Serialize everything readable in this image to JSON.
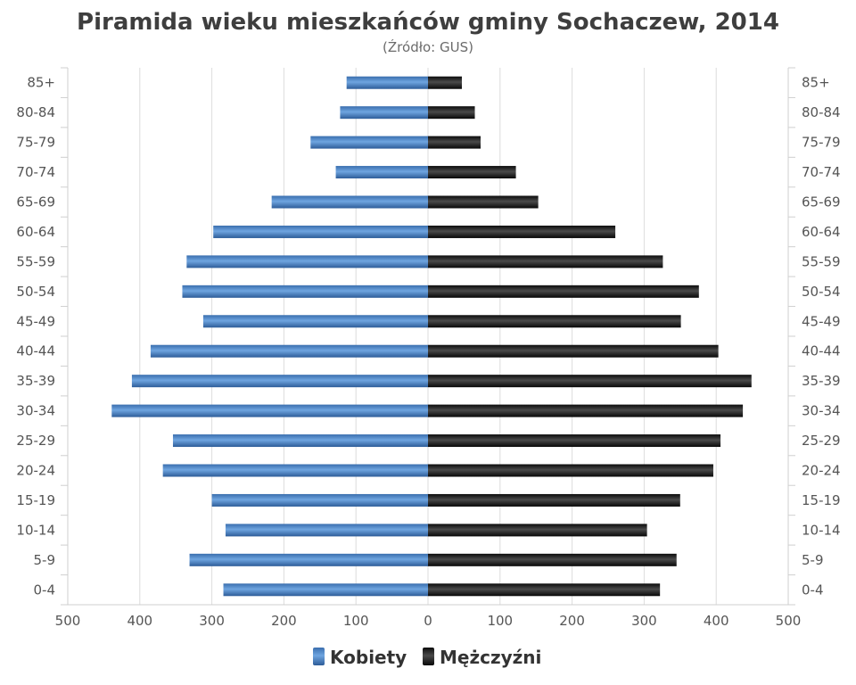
{
  "chart_data": {
    "type": "bar",
    "orientation": "horizontal-pyramid",
    "title": "Piramida wieku mieszkańców gminy Sochaczew, 2014",
    "subtitle": "(Źródło: GUS)",
    "categories": [
      "85+",
      "80-84",
      "75-79",
      "70-74",
      "65-69",
      "60-64",
      "55-59",
      "50-54",
      "45-49",
      "40-44",
      "35-39",
      "30-34",
      "25-29",
      "20-24",
      "15-19",
      "10-14",
      "5-9",
      "0-4"
    ],
    "series": [
      {
        "name": "Kobiety",
        "side": "left",
        "color": "#4a7fc1",
        "values": [
          113,
          122,
          163,
          128,
          217,
          298,
          335,
          341,
          312,
          385,
          411,
          439,
          354,
          368,
          300,
          281,
          331,
          284
        ]
      },
      {
        "name": "Mężczyźni",
        "side": "right",
        "color": "#1a1a1a",
        "values": [
          47,
          65,
          73,
          122,
          153,
          260,
          326,
          376,
          351,
          403,
          449,
          437,
          406,
          396,
          350,
          304,
          345,
          322
        ]
      }
    ],
    "xlim": [
      -500,
      500
    ],
    "xticks": [
      "500",
      "400",
      "300",
      "200",
      "100",
      "0",
      "100",
      "200",
      "300",
      "400",
      "500"
    ],
    "grid": true,
    "legend": "bottom-center"
  }
}
